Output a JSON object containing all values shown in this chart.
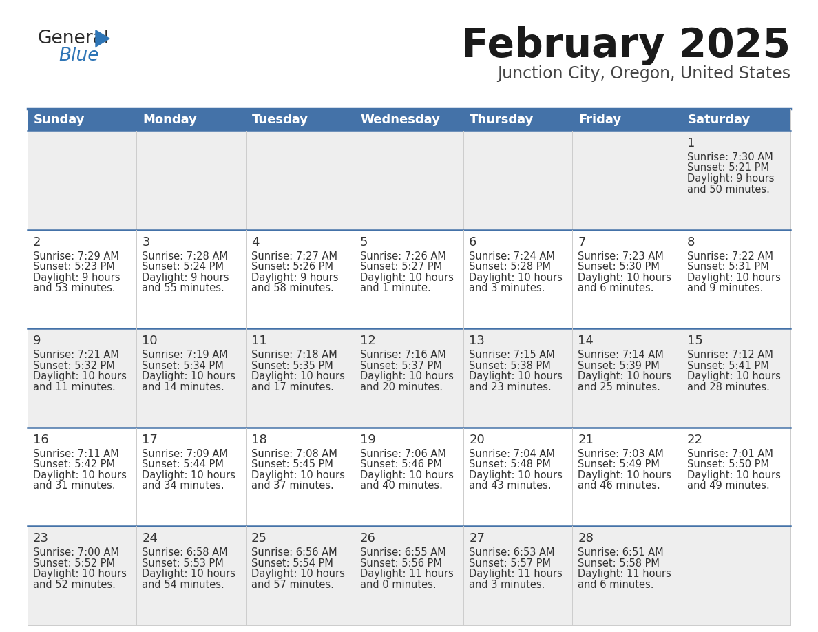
{
  "title": "February 2025",
  "subtitle": "Junction City, Oregon, United States",
  "header_bg": "#4472a8",
  "header_text": "#ffffff",
  "row_bg_light": "#eeeeee",
  "row_bg_white": "#ffffff",
  "cell_border_blue": "#4472a8",
  "cell_border_gray": "#cccccc",
  "day_headers": [
    "Sunday",
    "Monday",
    "Tuesday",
    "Wednesday",
    "Thursday",
    "Friday",
    "Saturday"
  ],
  "days": [
    {
      "day": 1,
      "col": 6,
      "row": 0,
      "sunrise": "7:30 AM",
      "sunset": "5:21 PM",
      "daylight_line1": "Daylight: 9 hours",
      "daylight_line2": "and 50 minutes."
    },
    {
      "day": 2,
      "col": 0,
      "row": 1,
      "sunrise": "7:29 AM",
      "sunset": "5:23 PM",
      "daylight_line1": "Daylight: 9 hours",
      "daylight_line2": "and 53 minutes."
    },
    {
      "day": 3,
      "col": 1,
      "row": 1,
      "sunrise": "7:28 AM",
      "sunset": "5:24 PM",
      "daylight_line1": "Daylight: 9 hours",
      "daylight_line2": "and 55 minutes."
    },
    {
      "day": 4,
      "col": 2,
      "row": 1,
      "sunrise": "7:27 AM",
      "sunset": "5:26 PM",
      "daylight_line1": "Daylight: 9 hours",
      "daylight_line2": "and 58 minutes."
    },
    {
      "day": 5,
      "col": 3,
      "row": 1,
      "sunrise": "7:26 AM",
      "sunset": "5:27 PM",
      "daylight_line1": "Daylight: 10 hours",
      "daylight_line2": "and 1 minute."
    },
    {
      "day": 6,
      "col": 4,
      "row": 1,
      "sunrise": "7:24 AM",
      "sunset": "5:28 PM",
      "daylight_line1": "Daylight: 10 hours",
      "daylight_line2": "and 3 minutes."
    },
    {
      "day": 7,
      "col": 5,
      "row": 1,
      "sunrise": "7:23 AM",
      "sunset": "5:30 PM",
      "daylight_line1": "Daylight: 10 hours",
      "daylight_line2": "and 6 minutes."
    },
    {
      "day": 8,
      "col": 6,
      "row": 1,
      "sunrise": "7:22 AM",
      "sunset": "5:31 PM",
      "daylight_line1": "Daylight: 10 hours",
      "daylight_line2": "and 9 minutes."
    },
    {
      "day": 9,
      "col": 0,
      "row": 2,
      "sunrise": "7:21 AM",
      "sunset": "5:32 PM",
      "daylight_line1": "Daylight: 10 hours",
      "daylight_line2": "and 11 minutes."
    },
    {
      "day": 10,
      "col": 1,
      "row": 2,
      "sunrise": "7:19 AM",
      "sunset": "5:34 PM",
      "daylight_line1": "Daylight: 10 hours",
      "daylight_line2": "and 14 minutes."
    },
    {
      "day": 11,
      "col": 2,
      "row": 2,
      "sunrise": "7:18 AM",
      "sunset": "5:35 PM",
      "daylight_line1": "Daylight: 10 hours",
      "daylight_line2": "and 17 minutes."
    },
    {
      "day": 12,
      "col": 3,
      "row": 2,
      "sunrise": "7:16 AM",
      "sunset": "5:37 PM",
      "daylight_line1": "Daylight: 10 hours",
      "daylight_line2": "and 20 minutes."
    },
    {
      "day": 13,
      "col": 4,
      "row": 2,
      "sunrise": "7:15 AM",
      "sunset": "5:38 PM",
      "daylight_line1": "Daylight: 10 hours",
      "daylight_line2": "and 23 minutes."
    },
    {
      "day": 14,
      "col": 5,
      "row": 2,
      "sunrise": "7:14 AM",
      "sunset": "5:39 PM",
      "daylight_line1": "Daylight: 10 hours",
      "daylight_line2": "and 25 minutes."
    },
    {
      "day": 15,
      "col": 6,
      "row": 2,
      "sunrise": "7:12 AM",
      "sunset": "5:41 PM",
      "daylight_line1": "Daylight: 10 hours",
      "daylight_line2": "and 28 minutes."
    },
    {
      "day": 16,
      "col": 0,
      "row": 3,
      "sunrise": "7:11 AM",
      "sunset": "5:42 PM",
      "daylight_line1": "Daylight: 10 hours",
      "daylight_line2": "and 31 minutes."
    },
    {
      "day": 17,
      "col": 1,
      "row": 3,
      "sunrise": "7:09 AM",
      "sunset": "5:44 PM",
      "daylight_line1": "Daylight: 10 hours",
      "daylight_line2": "and 34 minutes."
    },
    {
      "day": 18,
      "col": 2,
      "row": 3,
      "sunrise": "7:08 AM",
      "sunset": "5:45 PM",
      "daylight_line1": "Daylight: 10 hours",
      "daylight_line2": "and 37 minutes."
    },
    {
      "day": 19,
      "col": 3,
      "row": 3,
      "sunrise": "7:06 AM",
      "sunset": "5:46 PM",
      "daylight_line1": "Daylight: 10 hours",
      "daylight_line2": "and 40 minutes."
    },
    {
      "day": 20,
      "col": 4,
      "row": 3,
      "sunrise": "7:04 AM",
      "sunset": "5:48 PM",
      "daylight_line1": "Daylight: 10 hours",
      "daylight_line2": "and 43 minutes."
    },
    {
      "day": 21,
      "col": 5,
      "row": 3,
      "sunrise": "7:03 AM",
      "sunset": "5:49 PM",
      "daylight_line1": "Daylight: 10 hours",
      "daylight_line2": "and 46 minutes."
    },
    {
      "day": 22,
      "col": 6,
      "row": 3,
      "sunrise": "7:01 AM",
      "sunset": "5:50 PM",
      "daylight_line1": "Daylight: 10 hours",
      "daylight_line2": "and 49 minutes."
    },
    {
      "day": 23,
      "col": 0,
      "row": 4,
      "sunrise": "7:00 AM",
      "sunset": "5:52 PM",
      "daylight_line1": "Daylight: 10 hours",
      "daylight_line2": "and 52 minutes."
    },
    {
      "day": 24,
      "col": 1,
      "row": 4,
      "sunrise": "6:58 AM",
      "sunset": "5:53 PM",
      "daylight_line1": "Daylight: 10 hours",
      "daylight_line2": "and 54 minutes."
    },
    {
      "day": 25,
      "col": 2,
      "row": 4,
      "sunrise": "6:56 AM",
      "sunset": "5:54 PM",
      "daylight_line1": "Daylight: 10 hours",
      "daylight_line2": "and 57 minutes."
    },
    {
      "day": 26,
      "col": 3,
      "row": 4,
      "sunrise": "6:55 AM",
      "sunset": "5:56 PM",
      "daylight_line1": "Daylight: 11 hours",
      "daylight_line2": "and 0 minutes."
    },
    {
      "day": 27,
      "col": 4,
      "row": 4,
      "sunrise": "6:53 AM",
      "sunset": "5:57 PM",
      "daylight_line1": "Daylight: 11 hours",
      "daylight_line2": "and 3 minutes."
    },
    {
      "day": 28,
      "col": 5,
      "row": 4,
      "sunrise": "6:51 AM",
      "sunset": "5:58 PM",
      "daylight_line1": "Daylight: 11 hours",
      "daylight_line2": "and 6 minutes."
    }
  ],
  "num_rows": 5,
  "num_cols": 7,
  "title_fontsize": 42,
  "subtitle_fontsize": 17,
  "header_fontsize": 13,
  "day_num_fontsize": 13,
  "info_fontsize": 10.5
}
